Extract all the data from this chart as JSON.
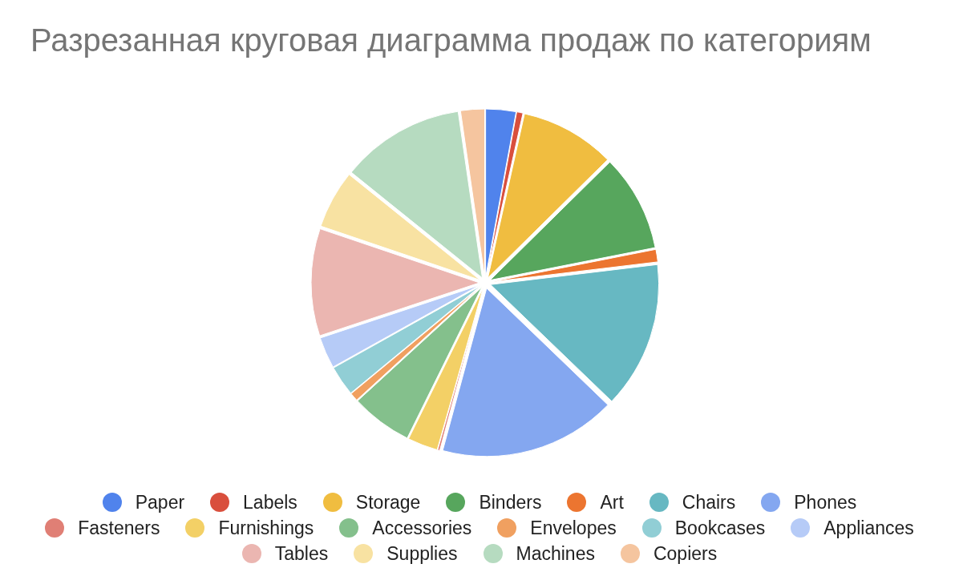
{
  "chart_data": {
    "type": "pie",
    "title": "Разрезанная круговая диаграмма продаж по категориям",
    "categories": [
      "Paper",
      "Labels",
      "Storage",
      "Binders",
      "Art",
      "Chairs",
      "Phones",
      "Fasteners",
      "Furnishings",
      "Accessories",
      "Envelopes",
      "Bookcases",
      "Appliances",
      "Tables",
      "Supplies",
      "Machines",
      "Copiers"
    ],
    "values": [
      2.9,
      0.6,
      9.1,
      9.3,
      1.2,
      14.1,
      17.0,
      0.2,
      2.9,
      5.9,
      0.8,
      2.9,
      3.0,
      10.3,
      5.6,
      11.9,
      2.3
    ],
    "colors": [
      "#5083ec",
      "#d94f3d",
      "#f0bd40",
      "#57a65d",
      "#ec7530",
      "#67b8c2",
      "#84a7f0",
      "#e07f75",
      "#f3d066",
      "#84c08c",
      "#f0a060",
      "#91ced5",
      "#b6cbf7",
      "#ebb6b1",
      "#f8e2a2",
      "#b6dbc0",
      "#f5c59f"
    ],
    "legend": "bottom"
  }
}
